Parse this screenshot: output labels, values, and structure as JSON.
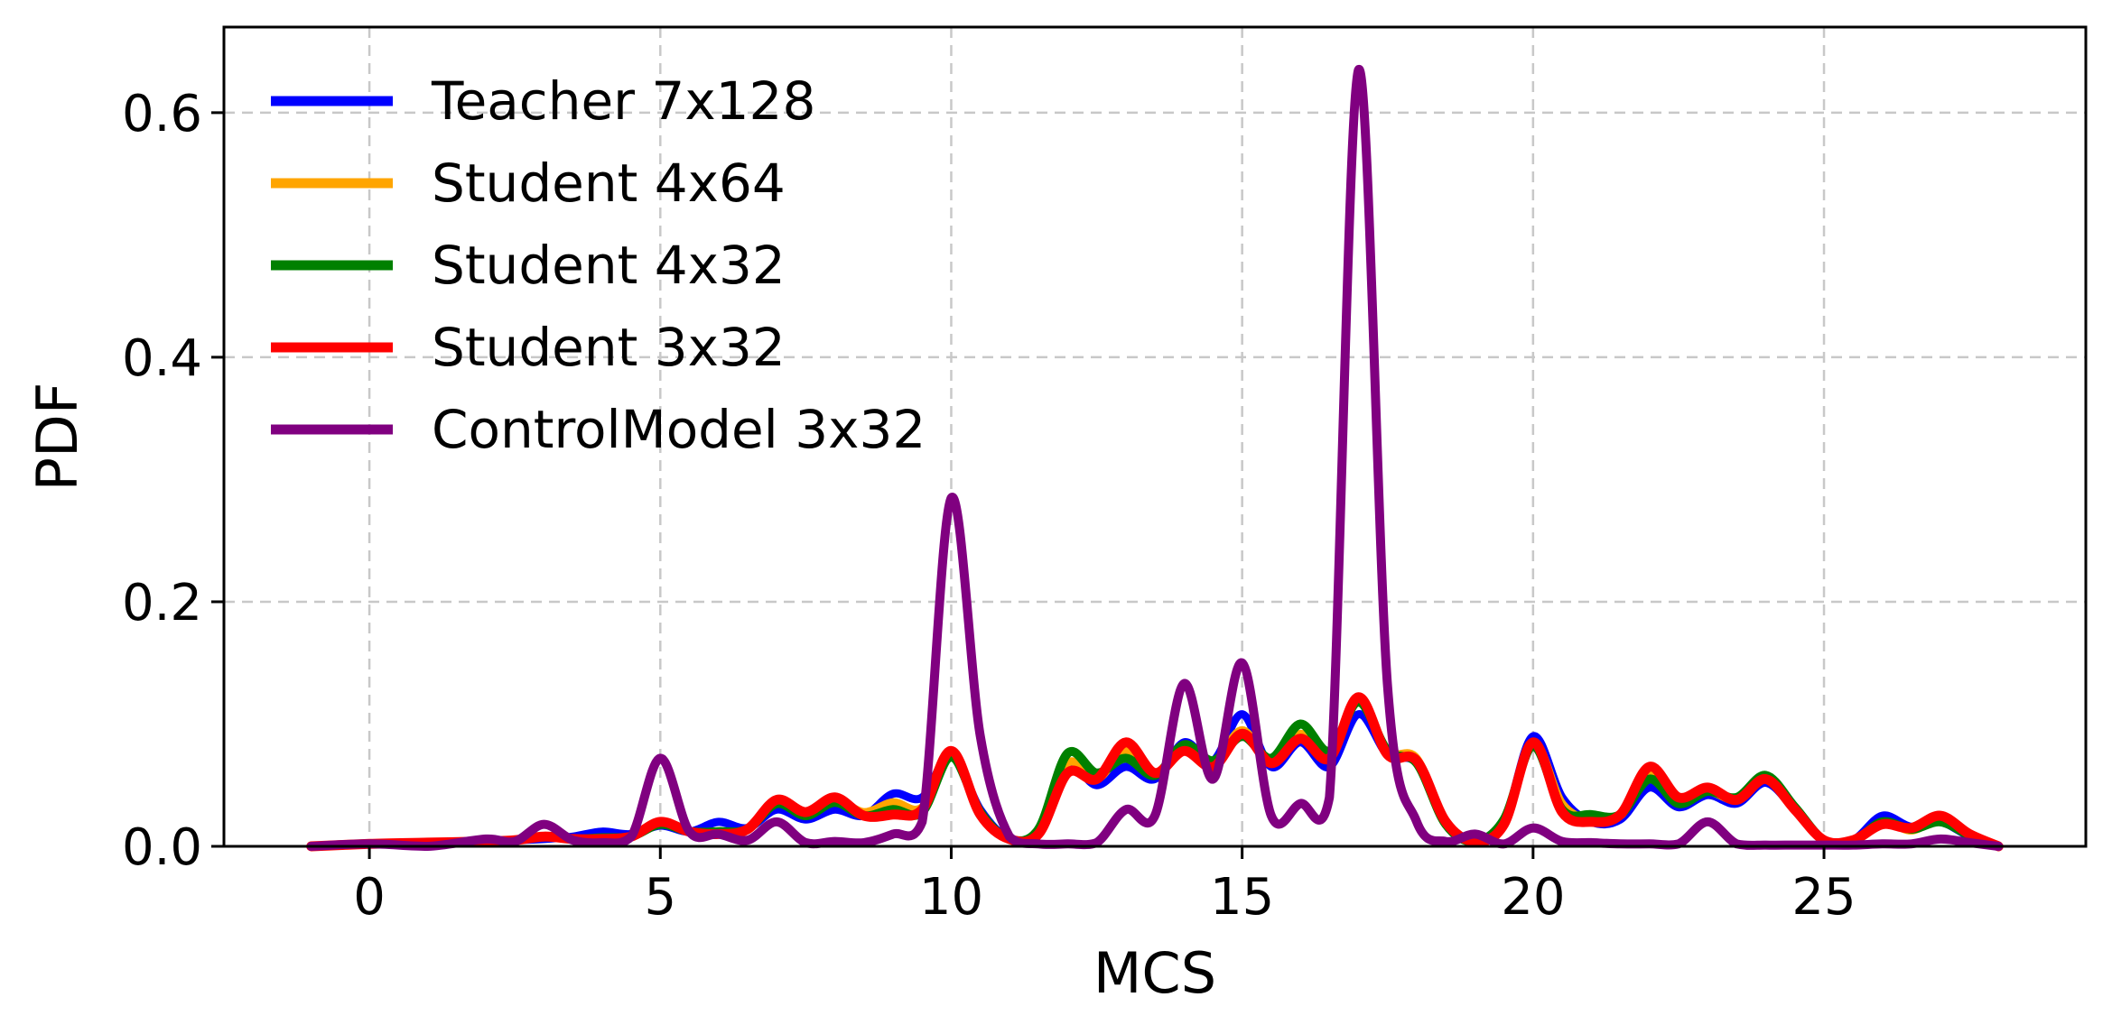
{
  "chart_data": {
    "type": "line",
    "xlabel": "MCS",
    "ylabel": "PDF",
    "xlim": [
      -2.5,
      29.5
    ],
    "ylim": [
      0,
      0.67
    ],
    "xticks": [
      0,
      5,
      10,
      15,
      20,
      25
    ],
    "yticks": [
      0.0,
      0.2,
      0.4,
      0.6
    ],
    "ytick_labels": [
      "0.0",
      "0.2",
      "0.4",
      "0.6"
    ],
    "grid": true,
    "legend_position": "top-left",
    "x": [
      -1,
      0,
      1,
      2,
      2.5,
      3,
      3.5,
      4,
      4.5,
      5,
      5.5,
      6,
      6.5,
      7,
      7.5,
      8,
      8.5,
      9,
      9.5,
      10,
      10.5,
      11,
      11.5,
      12,
      12.5,
      13,
      13.5,
      14,
      14.5,
      15,
      15.5,
      16,
      16.5,
      17,
      17.5,
      18,
      18.5,
      19,
      19.5,
      20,
      20.5,
      21,
      21.5,
      22,
      22.5,
      23,
      23.5,
      24,
      24.5,
      25,
      25.5,
      26,
      26.5,
      27,
      27.5,
      28
    ],
    "series": [
      {
        "name": "Teacher 7x128",
        "color": "#0000ff",
        "values": [
          0,
          0.002,
          0.003,
          0.004,
          0.005,
          0.006,
          0.008,
          0.012,
          0.01,
          0.017,
          0.012,
          0.02,
          0.015,
          0.03,
          0.022,
          0.03,
          0.025,
          0.043,
          0.04,
          0.075,
          0.03,
          0.006,
          0.01,
          0.065,
          0.05,
          0.065,
          0.055,
          0.085,
          0.07,
          0.108,
          0.065,
          0.085,
          0.065,
          0.108,
          0.075,
          0.068,
          0.02,
          0.004,
          0.02,
          0.09,
          0.04,
          0.02,
          0.022,
          0.048,
          0.032,
          0.042,
          0.035,
          0.052,
          0.03,
          0.005,
          0.005,
          0.025,
          0.016,
          0.02,
          0.008,
          0
        ]
      },
      {
        "name": "Student 4x64",
        "color": "#ffa500",
        "values": [
          0,
          0.002,
          0.003,
          0.004,
          0.005,
          0.008,
          0.006,
          0.007,
          0.008,
          0.018,
          0.012,
          0.012,
          0.014,
          0.035,
          0.025,
          0.038,
          0.028,
          0.036,
          0.032,
          0.076,
          0.028,
          0.006,
          0.012,
          0.068,
          0.055,
          0.078,
          0.06,
          0.078,
          0.068,
          0.095,
          0.068,
          0.092,
          0.072,
          0.12,
          0.078,
          0.072,
          0.018,
          0.004,
          0.02,
          0.085,
          0.035,
          0.022,
          0.025,
          0.058,
          0.038,
          0.045,
          0.038,
          0.055,
          0.032,
          0.005,
          0.004,
          0.02,
          0.013,
          0.022,
          0.01,
          0
        ]
      },
      {
        "name": "Student 4x32",
        "color": "#008000",
        "values": [
          0,
          0.002,
          0.003,
          0.004,
          0.005,
          0.008,
          0.006,
          0.007,
          0.008,
          0.018,
          0.012,
          0.012,
          0.014,
          0.035,
          0.025,
          0.036,
          0.025,
          0.03,
          0.028,
          0.073,
          0.028,
          0.006,
          0.014,
          0.076,
          0.06,
          0.072,
          0.058,
          0.083,
          0.07,
          0.09,
          0.072,
          0.1,
          0.078,
          0.118,
          0.078,
          0.068,
          0.018,
          0.004,
          0.022,
          0.082,
          0.03,
          0.026,
          0.026,
          0.055,
          0.035,
          0.045,
          0.04,
          0.058,
          0.032,
          0.005,
          0.004,
          0.02,
          0.014,
          0.02,
          0.009,
          0
        ]
      },
      {
        "name": "Student 3x32",
        "color": "#ff0000",
        "values": [
          0,
          0.002,
          0.003,
          0.004,
          0.005,
          0.008,
          0.006,
          0.006,
          0.008,
          0.02,
          0.012,
          0.01,
          0.014,
          0.038,
          0.028,
          0.04,
          0.025,
          0.026,
          0.03,
          0.078,
          0.026,
          0.006,
          0.01,
          0.06,
          0.055,
          0.085,
          0.06,
          0.078,
          0.065,
          0.092,
          0.068,
          0.088,
          0.072,
          0.122,
          0.075,
          0.07,
          0.02,
          0.004,
          0.018,
          0.085,
          0.028,
          0.02,
          0.026,
          0.065,
          0.04,
          0.048,
          0.038,
          0.055,
          0.03,
          0.005,
          0.005,
          0.018,
          0.015,
          0.025,
          0.01,
          0
        ]
      },
      {
        "name": "ControlModel 3x32",
        "color": "#800080",
        "values": [
          0,
          0.002,
          0,
          0.006,
          0.004,
          0.018,
          0.005,
          0.003,
          0.008,
          0.072,
          0.012,
          0.01,
          0.005,
          0.02,
          0.003,
          0.004,
          0.003,
          0.01,
          0.02,
          0.285,
          0.09,
          0.008,
          0.002,
          0.002,
          0.003,
          0.03,
          0.025,
          0.133,
          0.055,
          0.15,
          0.025,
          0.035,
          0.04,
          0.635,
          0.13,
          0.02,
          0.004,
          0.01,
          0.002,
          0.015,
          0.004,
          0.003,
          0.002,
          0.002,
          0.002,
          0.02,
          0.002,
          0.001,
          0.001,
          0.001,
          0.001,
          0.002,
          0.002,
          0.006,
          0.003,
          0
        ]
      }
    ]
  }
}
